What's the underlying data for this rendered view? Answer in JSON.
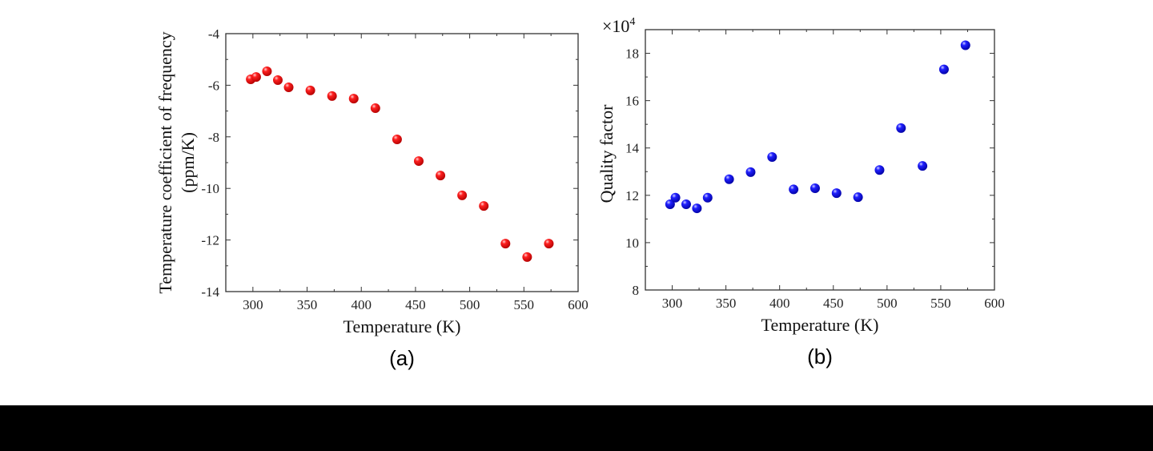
{
  "chart_data": [
    {
      "type": "scatter",
      "panel_label": "(a)",
      "xlabel": "Temperature (K)",
      "ylabel_line1": "Temperature coefficient of frequency",
      "ylabel_line2": "(ppm/K)",
      "xlim": [
        275,
        600
      ],
      "ylim": [
        -14,
        -4
      ],
      "xticks": [
        300,
        350,
        400,
        450,
        500,
        550,
        600
      ],
      "yticks": [
        -4,
        -6,
        -8,
        -10,
        -12,
        -14
      ],
      "grid": false,
      "marker_color": "#ff0000",
      "x": [
        298,
        303,
        313,
        323,
        333,
        353,
        373,
        393,
        413,
        433,
        453,
        473,
        493,
        513,
        533,
        553,
        573
      ],
      "y": [
        -5.77,
        -5.68,
        -5.46,
        -5.8,
        -6.08,
        -6.2,
        -6.42,
        -6.52,
        -6.89,
        -8.1,
        -8.94,
        -9.5,
        -10.27,
        -10.68,
        -12.14,
        -12.66,
        -12.14
      ]
    },
    {
      "type": "scatter",
      "panel_label": "(b)",
      "xlabel": "Temperature (K)",
      "ylabel": "Quality factor",
      "y_multiplier": "×10",
      "y_multiplier_exp": "4",
      "xlim": [
        275,
        600
      ],
      "ylim": [
        8,
        19
      ],
      "xticks": [
        300,
        350,
        400,
        450,
        500,
        550,
        600
      ],
      "yticks": [
        8,
        10,
        12,
        14,
        16,
        18
      ],
      "grid": false,
      "marker_color": "#0000ff",
      "x": [
        298,
        303,
        313,
        323,
        333,
        353,
        373,
        393,
        413,
        433,
        453,
        473,
        493,
        513,
        533,
        553,
        573
      ],
      "y": [
        11.62,
        11.9,
        11.62,
        11.45,
        11.9,
        12.68,
        12.98,
        13.62,
        12.25,
        12.3,
        12.09,
        11.92,
        13.07,
        14.84,
        13.24,
        17.32,
        18.34
      ]
    }
  ]
}
